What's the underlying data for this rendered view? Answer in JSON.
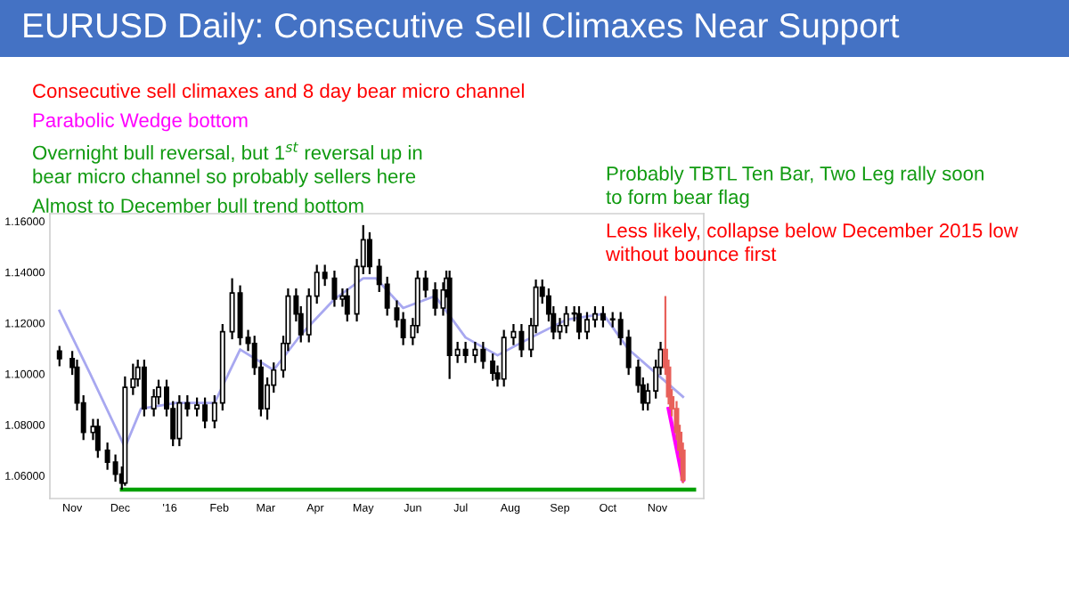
{
  "chart_data": {
    "type": "candlestick",
    "title": "EURUSD Daily: Consecutive Sell Climaxes Near Support",
    "xlim": [
      "2015-10-18",
      "2016-11-30"
    ],
    "xticks": [
      {
        "value": "2015-11-01",
        "label": "Nov"
      },
      {
        "value": "2015-12-01",
        "label": "Dec"
      },
      {
        "value": "2016-01-01",
        "label": "'16"
      },
      {
        "value": "2016-02-01",
        "label": "Feb"
      },
      {
        "value": "2016-03-01",
        "label": "Mar"
      },
      {
        "value": "2016-04-01",
        "label": "Apr"
      },
      {
        "value": "2016-05-01",
        "label": "May"
      },
      {
        "value": "2016-06-01",
        "label": "Jun"
      },
      {
        "value": "2016-07-01",
        "label": "Jul"
      },
      {
        "value": "2016-08-01",
        "label": "Aug"
      },
      {
        "value": "2016-09-01",
        "label": "Sep"
      },
      {
        "value": "2016-10-01",
        "label": "Oct"
      },
      {
        "value": "2016-11-01",
        "label": "Nov"
      }
    ],
    "ylim": [
      1.051,
      1.163
    ],
    "yticks": [
      {
        "value": 1.06,
        "label": "1.06000"
      },
      {
        "value": 1.08,
        "label": "1.08000"
      },
      {
        "value": 1.1,
        "label": "1.10000"
      },
      {
        "value": 1.12,
        "label": "1.12000"
      },
      {
        "value": 1.14,
        "label": "1.14000"
      },
      {
        "value": 1.16,
        "label": "1.16000"
      }
    ],
    "grid": false,
    "legend": false,
    "annotations": [
      "Consecutive sell climaxes and 8 day bear micro channel",
      "Parabolic Wedge bottom",
      "Overnight bull reversal, but 1$^{st}$ reversal up in\nbear micro channel so probably sellers here",
      "Almost to December bull trend bottom",
      "Probably TBTL Ten Bar, Two Leg rally soon\nto form bear flag",
      "Less likely, collapse below December 2015 low\nwithout bounce first"
    ],
    "series": [
      {
        "x": [
          "2015-10-24",
          "2015-11-01",
          "2015-11-04",
          "2015-11-08",
          "2015-11-14",
          "2015-11-17",
          "2015-11-23",
          "2015-11-28",
          "2015-12-02",
          "2015-12-04",
          "2015-12-09",
          "2015-12-12",
          "2015-12-16",
          "2015-12-22",
          "2015-12-25",
          "2015-12-30",
          "2016-01-03",
          "2016-01-07",
          "2016-01-12",
          "2016-01-18",
          "2016-01-23",
          "2016-01-29",
          "2016-02-03",
          "2016-02-09",
          "2016-02-14",
          "2016-02-19",
          "2016-02-23",
          "2016-02-27",
          "2016-03-02",
          "2016-03-06",
          "2016-03-12",
          "2016-03-15",
          "2016-03-20",
          "2016-03-23",
          "2016-03-28",
          "2016-04-02",
          "2016-04-07",
          "2016-04-13",
          "2016-04-18",
          "2016-04-21",
          "2016-04-27",
          "2016-05-01",
          "2016-05-05",
          "2016-05-11",
          "2016-05-16",
          "2016-05-22",
          "2016-05-26",
          "2016-06-01",
          "2016-06-04",
          "2016-06-09",
          "2016-06-15",
          "2016-06-20",
          "2016-06-22",
          "2016-06-24",
          "2016-06-29",
          "2016-07-04",
          "2016-07-10",
          "2016-07-15",
          "2016-07-21",
          "2016-07-24",
          "2016-07-28",
          "2016-08-03",
          "2016-08-08",
          "2016-08-14",
          "2016-08-17",
          "2016-08-21",
          "2016-08-25",
          "2016-08-28",
          "2016-09-01",
          "2016-09-05",
          "2016-09-10",
          "2016-09-13",
          "2016-09-18",
          "2016-09-23",
          "2016-09-28",
          "2016-10-04",
          "2016-10-09",
          "2016-10-14",
          "2016-10-20",
          "2016-10-23",
          "2016-10-26",
          "2016-10-31",
          "2016-11-03",
          "2016-11-06",
          "2016-11-08",
          "2016-11-10",
          "2016-11-13",
          "2016-11-15",
          "2016-11-17"
        ],
        "ohlc": [
          [
            1.109,
            1.111,
            1.103,
            1.106
          ],
          [
            1.106,
            1.109,
            1.0996,
            1.1026
          ],
          [
            1.1026,
            1.1056,
            1.0856,
            1.0886
          ],
          [
            1.0886,
            1.0916,
            1.074,
            1.077
          ],
          [
            1.077,
            1.0823,
            1.074,
            1.0793
          ],
          [
            1.0793,
            1.0823,
            1.067,
            1.07
          ],
          [
            1.07,
            1.073,
            1.0623,
            1.0653
          ],
          [
            1.0653,
            1.0683,
            1.0576,
            1.0606
          ],
          [
            1.0606,
            1.0636,
            1.0545,
            1.0571
          ],
          [
            1.0571,
            1.099,
            1.056,
            1.0947
          ],
          [
            1.0947,
            1.104,
            1.0917,
            1.098
          ],
          [
            1.098,
            1.1056,
            1.095,
            1.1026
          ],
          [
            1.1026,
            1.1056,
            1.0833,
            1.0863
          ],
          [
            1.0863,
            1.094,
            1.0833,
            1.091
          ],
          [
            1.091,
            1.0977,
            1.088,
            1.0947
          ],
          [
            1.0947,
            1.0977,
            1.0833,
            1.0863
          ],
          [
            1.0863,
            1.0893,
            1.0716,
            1.0746
          ],
          [
            1.0746,
            1.0916,
            1.0716,
            1.0886
          ],
          [
            1.0886,
            1.0916,
            1.0833,
            1.0863
          ],
          [
            1.0863,
            1.0907,
            1.0833,
            1.0877
          ],
          [
            1.0877,
            1.0907,
            1.0786,
            1.0816
          ],
          [
            1.0816,
            1.0916,
            1.0786,
            1.0886
          ],
          [
            1.0886,
            1.1196,
            1.0856,
            1.1166
          ],
          [
            1.1166,
            1.1376,
            1.1136,
            1.1318
          ],
          [
            1.1318,
            1.1348,
            1.1113,
            1.1143
          ],
          [
            1.1143,
            1.1173,
            1.109,
            1.112
          ],
          [
            1.112,
            1.115,
            1.0996,
            1.1026
          ],
          [
            1.1026,
            1.1056,
            1.0833,
            1.0863
          ],
          [
            1.0863,
            1.0986,
            1.082,
            1.0956
          ],
          [
            1.0956,
            1.1045,
            1.0926,
            1.1015
          ],
          [
            1.1015,
            1.115,
            1.0985,
            1.112
          ],
          [
            1.112,
            1.1336,
            1.109,
            1.1306
          ],
          [
            1.1306,
            1.1336,
            1.1206,
            1.1236
          ],
          [
            1.1236,
            1.1266,
            1.1124,
            1.1154
          ],
          [
            1.1154,
            1.1336,
            1.1124,
            1.1306
          ],
          [
            1.1306,
            1.1429,
            1.1276,
            1.1399
          ],
          [
            1.1399,
            1.1429,
            1.1346,
            1.1376
          ],
          [
            1.1376,
            1.1406,
            1.1264,
            1.1294
          ],
          [
            1.1294,
            1.1336,
            1.1264,
            1.1306
          ],
          [
            1.1306,
            1.1336,
            1.1206,
            1.1236
          ],
          [
            1.1236,
            1.1452,
            1.1206,
            1.1422
          ],
          [
            1.1422,
            1.1585,
            1.1392,
            1.1527
          ],
          [
            1.1527,
            1.1557,
            1.1392,
            1.1422
          ],
          [
            1.1422,
            1.1452,
            1.1322,
            1.1352
          ],
          [
            1.1352,
            1.1382,
            1.1229,
            1.1259
          ],
          [
            1.1259,
            1.1289,
            1.1183,
            1.1213
          ],
          [
            1.1213,
            1.1243,
            1.1113,
            1.1143
          ],
          [
            1.1143,
            1.122,
            1.1113,
            1.119
          ],
          [
            1.119,
            1.1406,
            1.116,
            1.1376
          ],
          [
            1.1376,
            1.1406,
            1.13,
            1.133
          ],
          [
            1.133,
            1.136,
            1.1229,
            1.1259
          ],
          [
            1.1259,
            1.136,
            1.1229,
            1.133
          ],
          [
            1.133,
            1.1406,
            1.13,
            1.1376
          ],
          [
            1.1376,
            1.1406,
            1.098,
            1.1073
          ],
          [
            1.1073,
            1.1126,
            1.1043,
            1.1096
          ],
          [
            1.1096,
            1.1126,
            1.1043,
            1.1073
          ],
          [
            1.1073,
            1.1126,
            1.1043,
            1.1096
          ],
          [
            1.1096,
            1.1126,
            1.102,
            1.105
          ],
          [
            1.105,
            1.108,
            1.0973,
            1.1003
          ],
          [
            1.1003,
            1.1033,
            1.095,
            1.098
          ],
          [
            1.098,
            1.1173,
            1.095,
            1.1143
          ],
          [
            1.1143,
            1.1196,
            1.1113,
            1.1166
          ],
          [
            1.1166,
            1.1196,
            1.1066,
            1.1096
          ],
          [
            1.1096,
            1.122,
            1.1066,
            1.119
          ],
          [
            1.119,
            1.1371,
            1.116,
            1.1341
          ],
          [
            1.1341,
            1.1371,
            1.1276,
            1.1306
          ],
          [
            1.1306,
            1.1336,
            1.1206,
            1.1236
          ],
          [
            1.1236,
            1.1266,
            1.1136,
            1.1166
          ],
          [
            1.1166,
            1.122,
            1.1136,
            1.119
          ],
          [
            1.119,
            1.1266,
            1.116,
            1.1236
          ],
          [
            1.1236,
            1.1266,
            1.1206,
            1.1236
          ],
          [
            1.1236,
            1.1266,
            1.1136,
            1.1166
          ],
          [
            1.1166,
            1.1243,
            1.1136,
            1.1213
          ],
          [
            1.1213,
            1.1266,
            1.1183,
            1.1236
          ],
          [
            1.1236,
            1.1266,
            1.1183,
            1.1213
          ],
          [
            1.1213,
            1.1243,
            1.1183,
            1.1213
          ],
          [
            1.1213,
            1.1243,
            1.1113,
            1.1143
          ],
          [
            1.1143,
            1.1173,
            1.0996,
            1.1026
          ],
          [
            1.1026,
            1.1056,
            1.0926,
            1.0956
          ],
          [
            1.0956,
            1.0986,
            1.0856,
            1.0886
          ],
          [
            1.0886,
            1.0963,
            1.0856,
            1.0933
          ],
          [
            1.0933,
            1.1056,
            1.0903,
            1.1026
          ],
          [
            1.1026,
            1.1126,
            1.0996,
            1.1096
          ],
          [
            1.1096,
            1.1306,
            1.0996,
            1.1026
          ],
          [
            1.1026,
            1.1056,
            1.088,
            1.091
          ],
          [
            1.091,
            1.094,
            1.0833,
            1.0863
          ],
          [
            1.0863,
            1.0893,
            1.074,
            1.077
          ],
          [
            1.077,
            1.08,
            1.067,
            1.07
          ],
          [
            1.07,
            1.073,
            1.057,
            1.0583
          ]
        ],
        "colors": [
          "#000000",
          "#000000",
          "#000000",
          "#000000",
          "#000000",
          "#000000",
          "#000000",
          "#000000",
          "#000000",
          "#000000",
          "#000000",
          "#000000",
          "#000000",
          "#000000",
          "#000000",
          "#000000",
          "#000000",
          "#000000",
          "#000000",
          "#000000",
          "#000000",
          "#000000",
          "#000000",
          "#000000",
          "#000000",
          "#000000",
          "#000000",
          "#000000",
          "#000000",
          "#000000",
          "#000000",
          "#000000",
          "#000000",
          "#000000",
          "#000000",
          "#000000",
          "#000000",
          "#000000",
          "#000000",
          "#000000",
          "#000000",
          "#000000",
          "#000000",
          "#000000",
          "#000000",
          "#000000",
          "#000000",
          "#000000",
          "#000000",
          "#000000",
          "#000000",
          "#000000",
          "#000000",
          "#000000",
          "#000000",
          "#000000",
          "#000000",
          "#000000",
          "#000000",
          "#000000",
          "#000000",
          "#000000",
          "#000000",
          "#000000",
          "#000000",
          "#000000",
          "#000000",
          "#000000",
          "#000000",
          "#000000",
          "#000000",
          "#000000",
          "#000000",
          "#000000",
          "#000000",
          "#000000",
          "#000000",
          "#000000",
          "#000000",
          "#000000",
          "#000000",
          "#000000",
          "#000000",
          "#e8605a",
          "#e8605a",
          "#e8605a",
          "#e8605a",
          "#e8605a",
          "#e8605a"
        ]
      },
      {
        "type": "line",
        "color": "#a8a8f0",
        "x": [
          "2015-10-24",
          "2015-11-12",
          "2015-12-04",
          "2015-12-14",
          "2016-01-05",
          "2016-01-29",
          "2016-02-14",
          "2016-03-06",
          "2016-03-23",
          "2016-04-13",
          "2016-05-01",
          "2016-05-09",
          "2016-05-26",
          "2016-06-15",
          "2016-07-04",
          "2016-07-24",
          "2016-08-14",
          "2016-09-05",
          "2016-09-28",
          "2016-10-14",
          "2016-10-31",
          "2016-11-17"
        ],
        "values": [
          1.1248,
          1.1003,
          1.0711,
          1.0863,
          1.0886,
          1.0886,
          1.1096,
          1.1015,
          1.1154,
          1.1294,
          1.1376,
          1.1376,
          1.1259,
          1.1306,
          1.1143,
          1.1073,
          1.1143,
          1.1213,
          1.1236,
          1.1096,
          1.1003,
          1.091
        ]
      },
      {
        "type": "line",
        "color": "#ff00ff",
        "x": [
          "2016-11-08",
          "2016-11-17"
        ],
        "values": [
          1.0863,
          1.0583
        ]
      },
      {
        "type": "line",
        "color": "#00a000",
        "x": [
          "2015-12-02",
          "2016-11-24"
        ],
        "values": [
          1.0545,
          1.0545
        ]
      }
    ]
  }
}
